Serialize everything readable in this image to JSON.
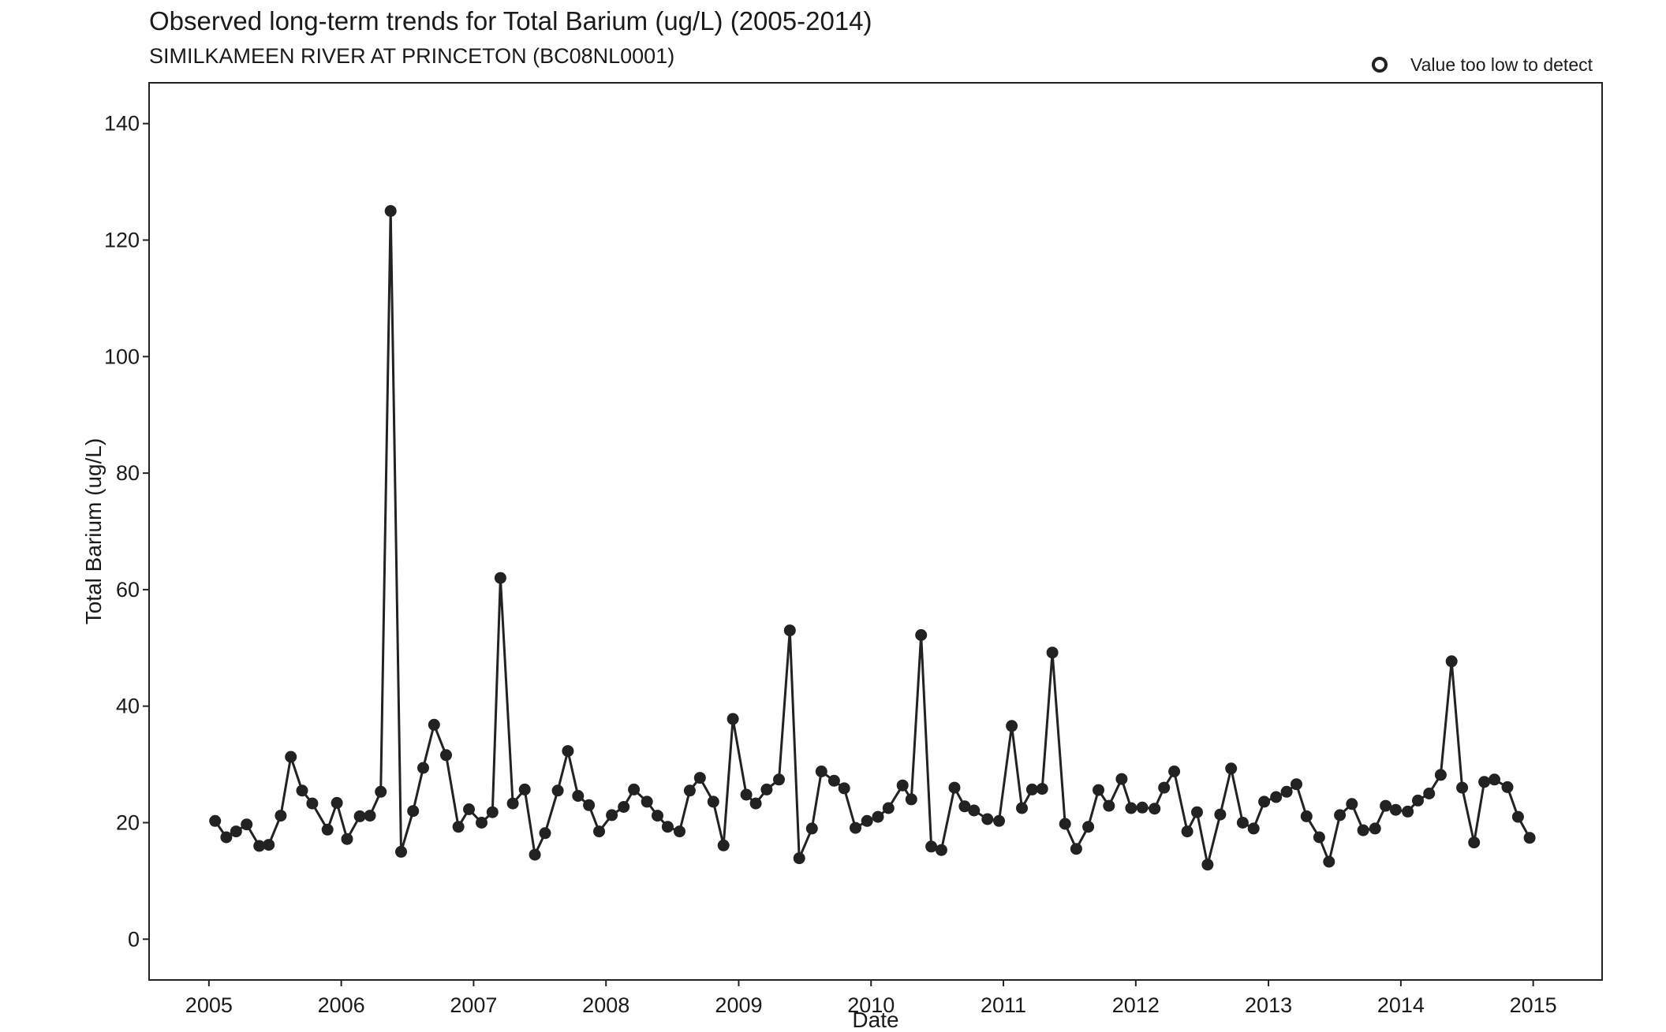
{
  "chart_data": {
    "type": "line",
    "title": "Observed long-term trends for Total Barium (ug/L) (2005-2014)",
    "subtitle": "SIMILKAMEEN RIVER AT PRINCETON (BC08NL0001)",
    "xlabel": "Date",
    "ylabel": "Total Barium (ug/L)",
    "xlim": [
      "2004-07-20",
      "2015-07-10"
    ],
    "ylim": [
      -7,
      147
    ],
    "x_ticks": [
      "2005",
      "2006",
      "2007",
      "2008",
      "2009",
      "2010",
      "2011",
      "2012",
      "2013",
      "2014",
      "2015"
    ],
    "y_ticks": [
      0,
      20,
      40,
      60,
      80,
      100,
      120,
      140
    ],
    "grid": false,
    "legend": {
      "position": "top-right",
      "entries": [
        {
          "label": "Value too low to detect",
          "marker": "open-circle"
        }
      ]
    },
    "colors": {
      "series": "#222222",
      "axis": "#222222"
    },
    "series": [
      {
        "x": [
          "2005-01-18",
          "2005-02-18",
          "2005-03-17",
          "2005-04-15",
          "2005-05-20",
          "2005-06-15",
          "2005-07-18",
          "2005-08-15",
          "2005-09-15",
          "2005-10-13",
          "2005-11-24",
          "2005-12-20",
          "2006-01-17",
          "2006-02-21",
          "2006-03-21",
          "2006-04-20",
          "2006-05-17",
          "2006-06-15",
          "2006-07-18",
          "2006-08-15",
          "2006-09-14",
          "2006-10-17",
          "2006-11-20",
          "2006-12-19",
          "2007-01-23",
          "2007-02-22",
          "2007-03-16",
          "2007-04-19",
          "2007-05-22",
          "2007-06-19",
          "2007-07-17",
          "2007-08-21",
          "2007-09-18",
          "2007-10-16",
          "2007-11-15",
          "2007-12-13",
          "2008-01-17",
          "2008-02-19",
          "2008-03-18",
          "2008-04-23",
          "2008-05-22",
          "2008-06-19",
          "2008-07-22",
          "2008-08-19",
          "2008-09-16",
          "2008-10-23",
          "2008-11-20",
          "2008-12-16",
          "2009-01-22",
          "2009-02-17",
          "2009-03-19",
          "2009-04-22",
          "2009-05-22",
          "2009-06-17",
          "2009-07-22",
          "2009-08-17",
          "2009-09-21",
          "2009-10-19",
          "2009-11-19",
          "2009-12-21",
          "2010-01-20",
          "2010-02-18",
          "2010-03-29",
          "2010-04-22",
          "2010-05-19",
          "2010-06-16",
          "2010-07-14",
          "2010-08-19",
          "2010-09-16",
          "2010-10-12",
          "2010-11-18",
          "2010-12-20",
          "2011-01-24",
          "2011-02-21",
          "2011-03-21",
          "2011-04-18",
          "2011-05-16",
          "2011-06-20",
          "2011-07-21",
          "2011-08-23",
          "2011-09-20",
          "2011-10-19",
          "2011-11-23",
          "2011-12-19",
          "2012-01-19",
          "2012-02-22",
          "2012-03-19",
          "2012-04-16",
          "2012-05-22",
          "2012-06-18",
          "2012-07-17",
          "2012-08-21",
          "2012-09-20",
          "2012-10-22",
          "2012-11-21",
          "2012-12-20",
          "2013-01-22",
          "2013-02-20",
          "2013-03-19",
          "2013-04-16",
          "2013-05-21",
          "2013-06-17",
          "2013-07-17",
          "2013-08-19",
          "2013-09-19",
          "2013-10-22",
          "2013-11-20",
          "2013-12-18",
          "2014-01-20",
          "2014-02-17",
          "2014-03-20",
          "2014-04-21",
          "2014-05-21",
          "2014-06-19",
          "2014-07-22",
          "2014-08-19",
          "2014-09-16",
          "2014-10-22",
          "2014-11-20",
          "2014-12-22"
        ],
        "values": [
          20.3,
          17.5,
          18.5,
          19.7,
          16.0,
          16.2,
          21.2,
          31.3,
          25.5,
          23.3,
          18.8,
          23.4,
          17.2,
          21.1,
          21.2,
          25.3,
          125.0,
          15.0,
          22.0,
          29.4,
          36.8,
          31.6,
          19.3,
          22.3,
          20.0,
          21.8,
          62.0,
          23.3,
          25.7,
          14.5,
          18.2,
          25.5,
          32.3,
          24.6,
          23.0,
          18.5,
          21.3,
          22.7,
          25.7,
          23.6,
          21.2,
          19.3,
          18.5,
          25.5,
          27.7,
          23.6,
          16.1,
          37.8,
          24.8,
          23.3,
          25.7,
          27.4,
          53.0,
          13.9,
          19.0,
          28.8,
          27.2,
          25.9,
          19.1,
          20.3,
          21.0,
          22.5,
          26.4,
          24.0,
          52.2,
          15.9,
          15.3,
          26.0,
          22.8,
          22.1,
          20.6,
          20.3,
          36.6,
          22.5,
          25.7,
          25.8,
          49.2,
          19.8,
          15.5,
          19.3,
          25.6,
          22.9,
          27.5,
          22.5,
          22.6,
          22.4,
          26.0,
          28.8,
          18.5,
          21.8,
          12.8,
          21.4,
          29.3,
          20.0,
          19.0,
          23.6,
          24.4,
          25.3,
          26.6,
          21.1,
          17.5,
          13.3,
          21.3,
          23.2,
          18.7,
          19.0,
          22.9,
          22.2,
          21.9,
          23.8,
          25.0,
          28.2,
          47.7,
          26.0,
          16.6,
          27.0,
          27.4,
          26.1,
          21.0,
          17.4
        ]
      }
    ]
  }
}
